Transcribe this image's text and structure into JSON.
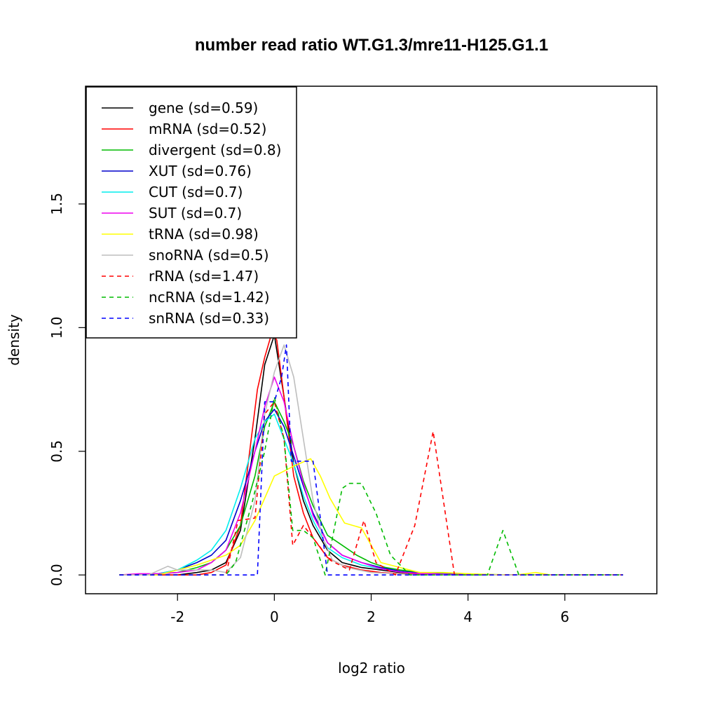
{
  "chart_data": {
    "type": "line",
    "title": "number read ratio WT.G1.3/mre11-H125.G1.1",
    "xlabel": "log2 ratio",
    "ylabel": "density",
    "xlim": [
      -3.9,
      7.9
    ],
    "ylim": [
      -0.076,
      1.976
    ],
    "xticks": [
      -2,
      0,
      2,
      4,
      6
    ],
    "xtick_labels": [
      "-2",
      "0",
      "2",
      "4",
      "6"
    ],
    "yticks": [
      0.0,
      0.5,
      1.0,
      1.5
    ],
    "ytick_labels": [
      "0.0",
      "0.5",
      "1.0",
      "1.5"
    ],
    "legend_position": "top-left",
    "series": [
      {
        "name": "gene (sd=0.59)",
        "color": "#000000",
        "dash": false,
        "x": [
          -3.2,
          -2.8,
          -2.4,
          -2.0,
          -1.6,
          -1.3,
          -1.0,
          -0.7,
          -0.4,
          -0.2,
          0.0,
          0.2,
          0.4,
          0.6,
          0.8,
          1.1,
          1.4,
          1.8,
          2.2,
          2.6,
          3.0,
          3.5,
          4.0,
          5.0,
          6.0,
          7.2
        ],
        "y": [
          0.0,
          0.0,
          0.0,
          0.0,
          0.01,
          0.02,
          0.05,
          0.18,
          0.55,
          0.85,
          0.97,
          0.72,
          0.45,
          0.3,
          0.2,
          0.1,
          0.05,
          0.03,
          0.02,
          0.01,
          0.005,
          0.003,
          0.002,
          0.0,
          0.0,
          0.0
        ]
      },
      {
        "name": "mRNA (sd=0.52)",
        "color": "#ff0000",
        "dash": false,
        "x": [
          -3.2,
          -2.4,
          -2.0,
          -1.6,
          -1.3,
          -1.0,
          -0.7,
          -0.35,
          -0.2,
          -0.05,
          0.05,
          0.2,
          0.4,
          0.6,
          0.8,
          1.1,
          1.4,
          1.8,
          2.2,
          2.6,
          3.0,
          4.0,
          5.0,
          6.0,
          7.2
        ],
        "y": [
          0.0,
          0.0,
          0.0,
          0.0,
          0.01,
          0.04,
          0.2,
          0.75,
          0.88,
          0.98,
          0.95,
          0.72,
          0.4,
          0.25,
          0.15,
          0.07,
          0.04,
          0.02,
          0.01,
          0.005,
          0.003,
          0.0,
          0.0,
          0.0,
          0.0
        ]
      },
      {
        "name": "divergent (sd=0.8)",
        "color": "#00bb00",
        "dash": false,
        "x": [
          -3.2,
          -2.8,
          -2.4,
          -2.0,
          -1.6,
          -1.3,
          -1.0,
          -0.7,
          -0.4,
          -0.2,
          0.0,
          0.2,
          0.4,
          0.6,
          0.8,
          1.1,
          1.4,
          1.7,
          2.0,
          2.3,
          2.6,
          3.0,
          3.5,
          4.0,
          5.0,
          6.0,
          7.2
        ],
        "y": [
          0.0,
          0.0,
          0.005,
          0.01,
          0.03,
          0.05,
          0.1,
          0.2,
          0.4,
          0.6,
          0.7,
          0.62,
          0.52,
          0.38,
          0.28,
          0.16,
          0.12,
          0.08,
          0.05,
          0.03,
          0.02,
          0.01,
          0.005,
          0.003,
          0.0,
          0.0,
          0.0
        ]
      },
      {
        "name": "XUT (sd=0.76)",
        "color": "#0000cc",
        "dash": false,
        "x": [
          -3.2,
          -2.8,
          -2.4,
          -2.0,
          -1.6,
          -1.3,
          -1.0,
          -0.7,
          -0.4,
          -0.2,
          0.0,
          0.2,
          0.4,
          0.6,
          0.8,
          1.1,
          1.4,
          1.8,
          2.2,
          2.6,
          3.0,
          3.5,
          4.0,
          5.0,
          6.0,
          7.2
        ],
        "y": [
          0.0,
          0.0,
          0.005,
          0.02,
          0.05,
          0.08,
          0.14,
          0.3,
          0.5,
          0.62,
          0.67,
          0.6,
          0.48,
          0.36,
          0.25,
          0.13,
          0.08,
          0.05,
          0.03,
          0.015,
          0.008,
          0.004,
          0.002,
          0.0,
          0.0,
          0.0
        ]
      },
      {
        "name": "CUT (sd=0.7)",
        "color": "#00eeee",
        "dash": false,
        "x": [
          -3.2,
          -2.8,
          -2.4,
          -2.0,
          -1.6,
          -1.3,
          -1.0,
          -0.7,
          -0.4,
          -0.2,
          0.0,
          0.2,
          0.4,
          0.6,
          0.8,
          1.1,
          1.4,
          1.8,
          2.2,
          2.6,
          3.0,
          3.5,
          4.0,
          5.0,
          6.0,
          7.2
        ],
        "y": [
          0.0,
          0.0,
          0.005,
          0.02,
          0.06,
          0.1,
          0.18,
          0.35,
          0.55,
          0.62,
          0.65,
          0.55,
          0.45,
          0.32,
          0.22,
          0.11,
          0.07,
          0.04,
          0.025,
          0.012,
          0.006,
          0.003,
          0.001,
          0.0,
          0.0,
          0.0
        ]
      },
      {
        "name": "SUT (sd=0.7)",
        "color": "#ee00ee",
        "dash": false,
        "x": [
          -3.2,
          -2.8,
          -2.4,
          -2.0,
          -1.6,
          -1.3,
          -1.0,
          -0.7,
          -0.4,
          -0.2,
          0.0,
          0.2,
          0.4,
          0.6,
          0.8,
          1.1,
          1.4,
          1.8,
          2.2,
          2.6,
          3.0,
          3.5,
          4.0,
          5.0,
          6.0,
          7.2
        ],
        "y": [
          0.0,
          0.005,
          0.005,
          0.01,
          0.02,
          0.05,
          0.1,
          0.25,
          0.5,
          0.68,
          0.8,
          0.7,
          0.52,
          0.37,
          0.24,
          0.13,
          0.08,
          0.05,
          0.025,
          0.012,
          0.006,
          0.003,
          0.001,
          0.0,
          0.0,
          0.0
        ]
      },
      {
        "name": "tRNA (sd=0.98)",
        "color": "#ffff00",
        "dash": false,
        "x": [
          -3.2,
          -2.8,
          -2.4,
          -2.0,
          -1.6,
          -1.3,
          -1.0,
          -0.7,
          -0.4,
          0.0,
          0.4,
          0.75,
          0.95,
          1.15,
          1.45,
          1.8,
          2.2,
          2.6,
          3.0,
          3.5,
          4.0,
          4.5,
          5.0,
          5.4,
          5.7,
          6.0,
          7.2
        ],
        "y": [
          0.0,
          0.0,
          0.0,
          0.02,
          0.04,
          0.06,
          0.08,
          0.12,
          0.22,
          0.4,
          0.44,
          0.47,
          0.4,
          0.31,
          0.21,
          0.19,
          0.05,
          0.03,
          0.01,
          0.01,
          0.005,
          0.002,
          0.0,
          0.01,
          0.0,
          0.0,
          0.0
        ]
      },
      {
        "name": "snoRNA (sd=0.5)",
        "color": "#bebebe",
        "dash": false,
        "x": [
          -3.2,
          -2.6,
          -2.2,
          -2.0,
          -1.6,
          -1.3,
          -1.0,
          -0.7,
          -0.4,
          -0.2,
          0.0,
          0.2,
          0.4,
          0.6,
          0.8,
          1.0,
          1.2,
          1.5,
          2.0,
          2.5,
          3.0,
          4.0,
          5.0,
          6.0,
          7.2
        ],
        "y": [
          0.0,
          0.0,
          0.035,
          0.02,
          0.02,
          0.02,
          0.01,
          0.07,
          0.3,
          0.65,
          0.82,
          0.93,
          0.8,
          0.55,
          0.3,
          0.15,
          0.06,
          0.03,
          0.01,
          0.005,
          0.0,
          0.0,
          0.0,
          0.0,
          0.0
        ]
      },
      {
        "name": "rRNA (sd=1.47)",
        "color": "#ff0000",
        "dash": true,
        "x": [
          -3.2,
          -1.0,
          -0.75,
          -0.4,
          -0.2,
          0.0,
          0.2,
          0.38,
          0.6,
          0.8,
          1.15,
          1.55,
          1.85,
          2.1,
          2.5,
          2.9,
          3.28,
          3.72,
          4.0,
          5.0,
          6.0,
          7.2
        ],
        "y": [
          0.0,
          0.0,
          0.22,
          0.23,
          0.65,
          0.7,
          0.55,
          0.12,
          0.2,
          0.15,
          0.06,
          0.02,
          0.22,
          0.05,
          0.0,
          0.2,
          0.58,
          0.0,
          0.0,
          0.0,
          0.0,
          0.0
        ]
      },
      {
        "name": "ncRNA (sd=1.42)",
        "color": "#00bb00",
        "dash": true,
        "x": [
          -3.2,
          -1.0,
          -0.8,
          -0.45,
          -0.2,
          0.0,
          0.2,
          0.38,
          0.6,
          0.8,
          1.05,
          1.4,
          1.55,
          1.8,
          2.1,
          2.4,
          2.8,
          3.2,
          4.0,
          4.4,
          4.72,
          5.05,
          5.5,
          6.0,
          7.2
        ],
        "y": [
          0.0,
          0.0,
          0.05,
          0.3,
          0.5,
          0.72,
          0.55,
          0.18,
          0.18,
          0.15,
          0.0,
          0.35,
          0.37,
          0.37,
          0.25,
          0.08,
          0.0,
          0.0,
          0.0,
          0.0,
          0.18,
          0.0,
          0.0,
          0.0,
          0.0
        ]
      },
      {
        "name": "snRNA (sd=0.33)",
        "color": "#0000ff",
        "dash": true,
        "x": [
          -3.2,
          -0.35,
          -0.2,
          0.0,
          0.15,
          0.25,
          0.35,
          0.8,
          1.1,
          2.0,
          3.0,
          4.0,
          5.0,
          6.0,
          7.2
        ],
        "y": [
          0.0,
          0.0,
          0.7,
          0.7,
          0.8,
          0.93,
          0.46,
          0.46,
          0.0,
          0.0,
          0.0,
          0.0,
          0.0,
          0.0,
          0.0
        ]
      }
    ]
  }
}
